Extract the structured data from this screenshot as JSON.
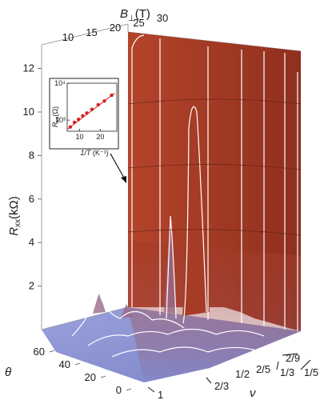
{
  "chart_data": {
    "type": "surface",
    "title": "",
    "axes": {
      "z": {
        "label_symbol": "R",
        "label_sub": "xx",
        "label_unit": "(kΩ)",
        "range": [
          0,
          13
        ],
        "ticks": [
          "2",
          "4",
          "6",
          "8",
          "10",
          "12"
        ]
      },
      "b_perp": {
        "label_symbol": "B",
        "label_sub": "⊥",
        "label_unit": "(T)",
        "ticks": [
          "10",
          "15",
          "20",
          "25",
          "30"
        ]
      },
      "theta": {
        "label": "θ",
        "ticks": [
          "0",
          "20",
          "40",
          "60"
        ]
      },
      "nu": {
        "label": "ν",
        "ticks": [
          "1",
          "2/3",
          "1/2",
          "2/5",
          "1/3",
          "2/9",
          "1/5"
        ],
        "arrowed": [
          "1",
          "2/3",
          "1/3",
          "2/9",
          "1/5"
        ]
      }
    },
    "surface_colors": {
      "high": "#a33a24",
      "low": "#7f86c9",
      "trace": "#ffffff"
    },
    "approx_features": [
      {
        "nu": "2/3",
        "theta": 20,
        "rxx_kohm": 0.4
      },
      {
        "nu": "1/2",
        "theta": 50,
        "rxx_kohm": 2.7
      },
      {
        "nu": "2/5",
        "theta": 60,
        "rxx_kohm": 10.0
      },
      {
        "nu": "1/5",
        "theta": 60,
        "rxx_kohm": 12.5
      }
    ],
    "inset": {
      "type": "scatter",
      "xlabel_symbol": "1/T",
      "xlabel_unit": "(K⁻¹)",
      "ylabel_symbol": "R",
      "ylabel_sub": "xx",
      "ylabel_unit": "(Ω)",
      "y_scale": "log",
      "yticks": [
        "10³",
        "10⁴"
      ],
      "xticks": [
        "10",
        "20"
      ],
      "points": [
        {
          "x": 5.5,
          "y": 650
        },
        {
          "x": 7.5,
          "y": 870
        },
        {
          "x": 9.5,
          "y": 1050
        },
        {
          "x": 11.5,
          "y": 1300
        },
        {
          "x": 13.5,
          "y": 1550
        },
        {
          "x": 16,
          "y": 1950
        },
        {
          "x": 19,
          "y": 2600
        },
        {
          "x": 22,
          "y": 3300
        },
        {
          "x": 25.5,
          "y": 4700
        }
      ],
      "fit": {
        "x": [
          4,
          27
        ],
        "y": [
          560,
          5400
        ]
      },
      "marker_color": "#d42222"
    }
  }
}
